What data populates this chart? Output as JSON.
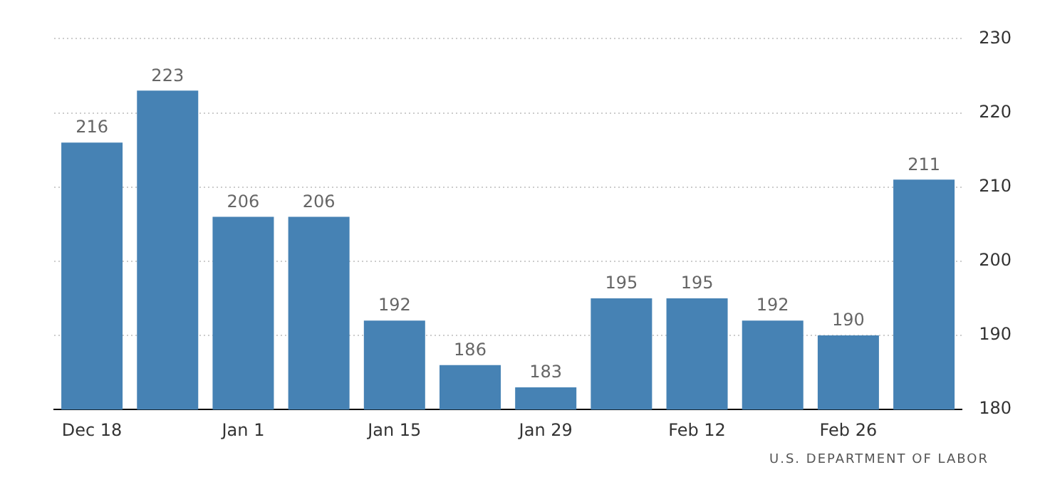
{
  "chart_data": {
    "type": "bar",
    "categories": [
      "Dec 18",
      null,
      "Jan 1",
      null,
      "Jan 15",
      null,
      "Jan 29",
      null,
      "Feb 12",
      null,
      "Feb 26",
      null
    ],
    "values": [
      216,
      223,
      206,
      206,
      192,
      186,
      183,
      195,
      195,
      192,
      190,
      211
    ],
    "color": "#4682b4",
    "ylim": [
      180,
      230
    ],
    "yticks": [
      180,
      190,
      200,
      210,
      220,
      230
    ],
    "grid": "y",
    "data_labels": true,
    "annotations": [
      "U.S. DEPARTMENT OF LABOR"
    ]
  }
}
